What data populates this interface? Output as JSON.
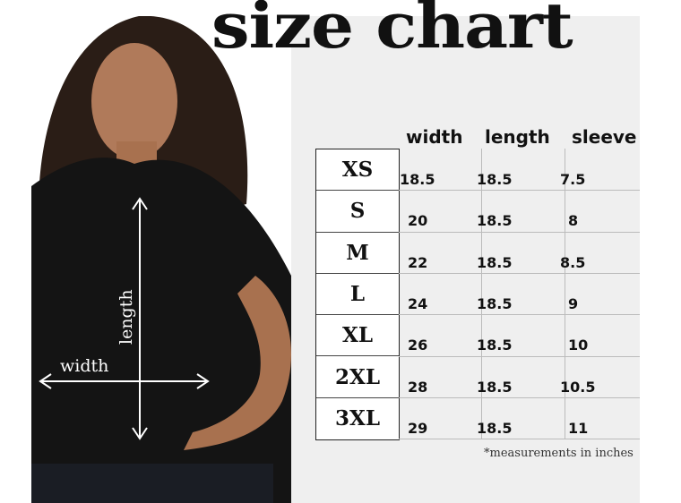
{
  "title": "size chart",
  "columns": [
    "width",
    "length",
    "sleeve"
  ],
  "rows": [
    {
      "size": "XS",
      "width": "18.5",
      "length": "18.5",
      "sleeve": "7.5"
    },
    {
      "size": "S",
      "width": "20",
      "length": "18.5",
      "sleeve": "8"
    },
    {
      "size": "M",
      "width": "22",
      "length": "18.5",
      "sleeve": "8.5"
    },
    {
      "size": "L",
      "width": "24",
      "length": "18.5",
      "sleeve": "9"
    },
    {
      "size": "XL",
      "width": "26",
      "length": "18.5",
      "sleeve": "10"
    },
    {
      "size": "2XL",
      "width": "28",
      "length": "18.5",
      "sleeve": "10.5"
    },
    {
      "size": "3XL",
      "width": "29",
      "length": "18.5",
      "sleeve": "11"
    }
  ],
  "note": "*measurements in inches",
  "photo_labels": {
    "width": "width",
    "length": "length"
  }
}
